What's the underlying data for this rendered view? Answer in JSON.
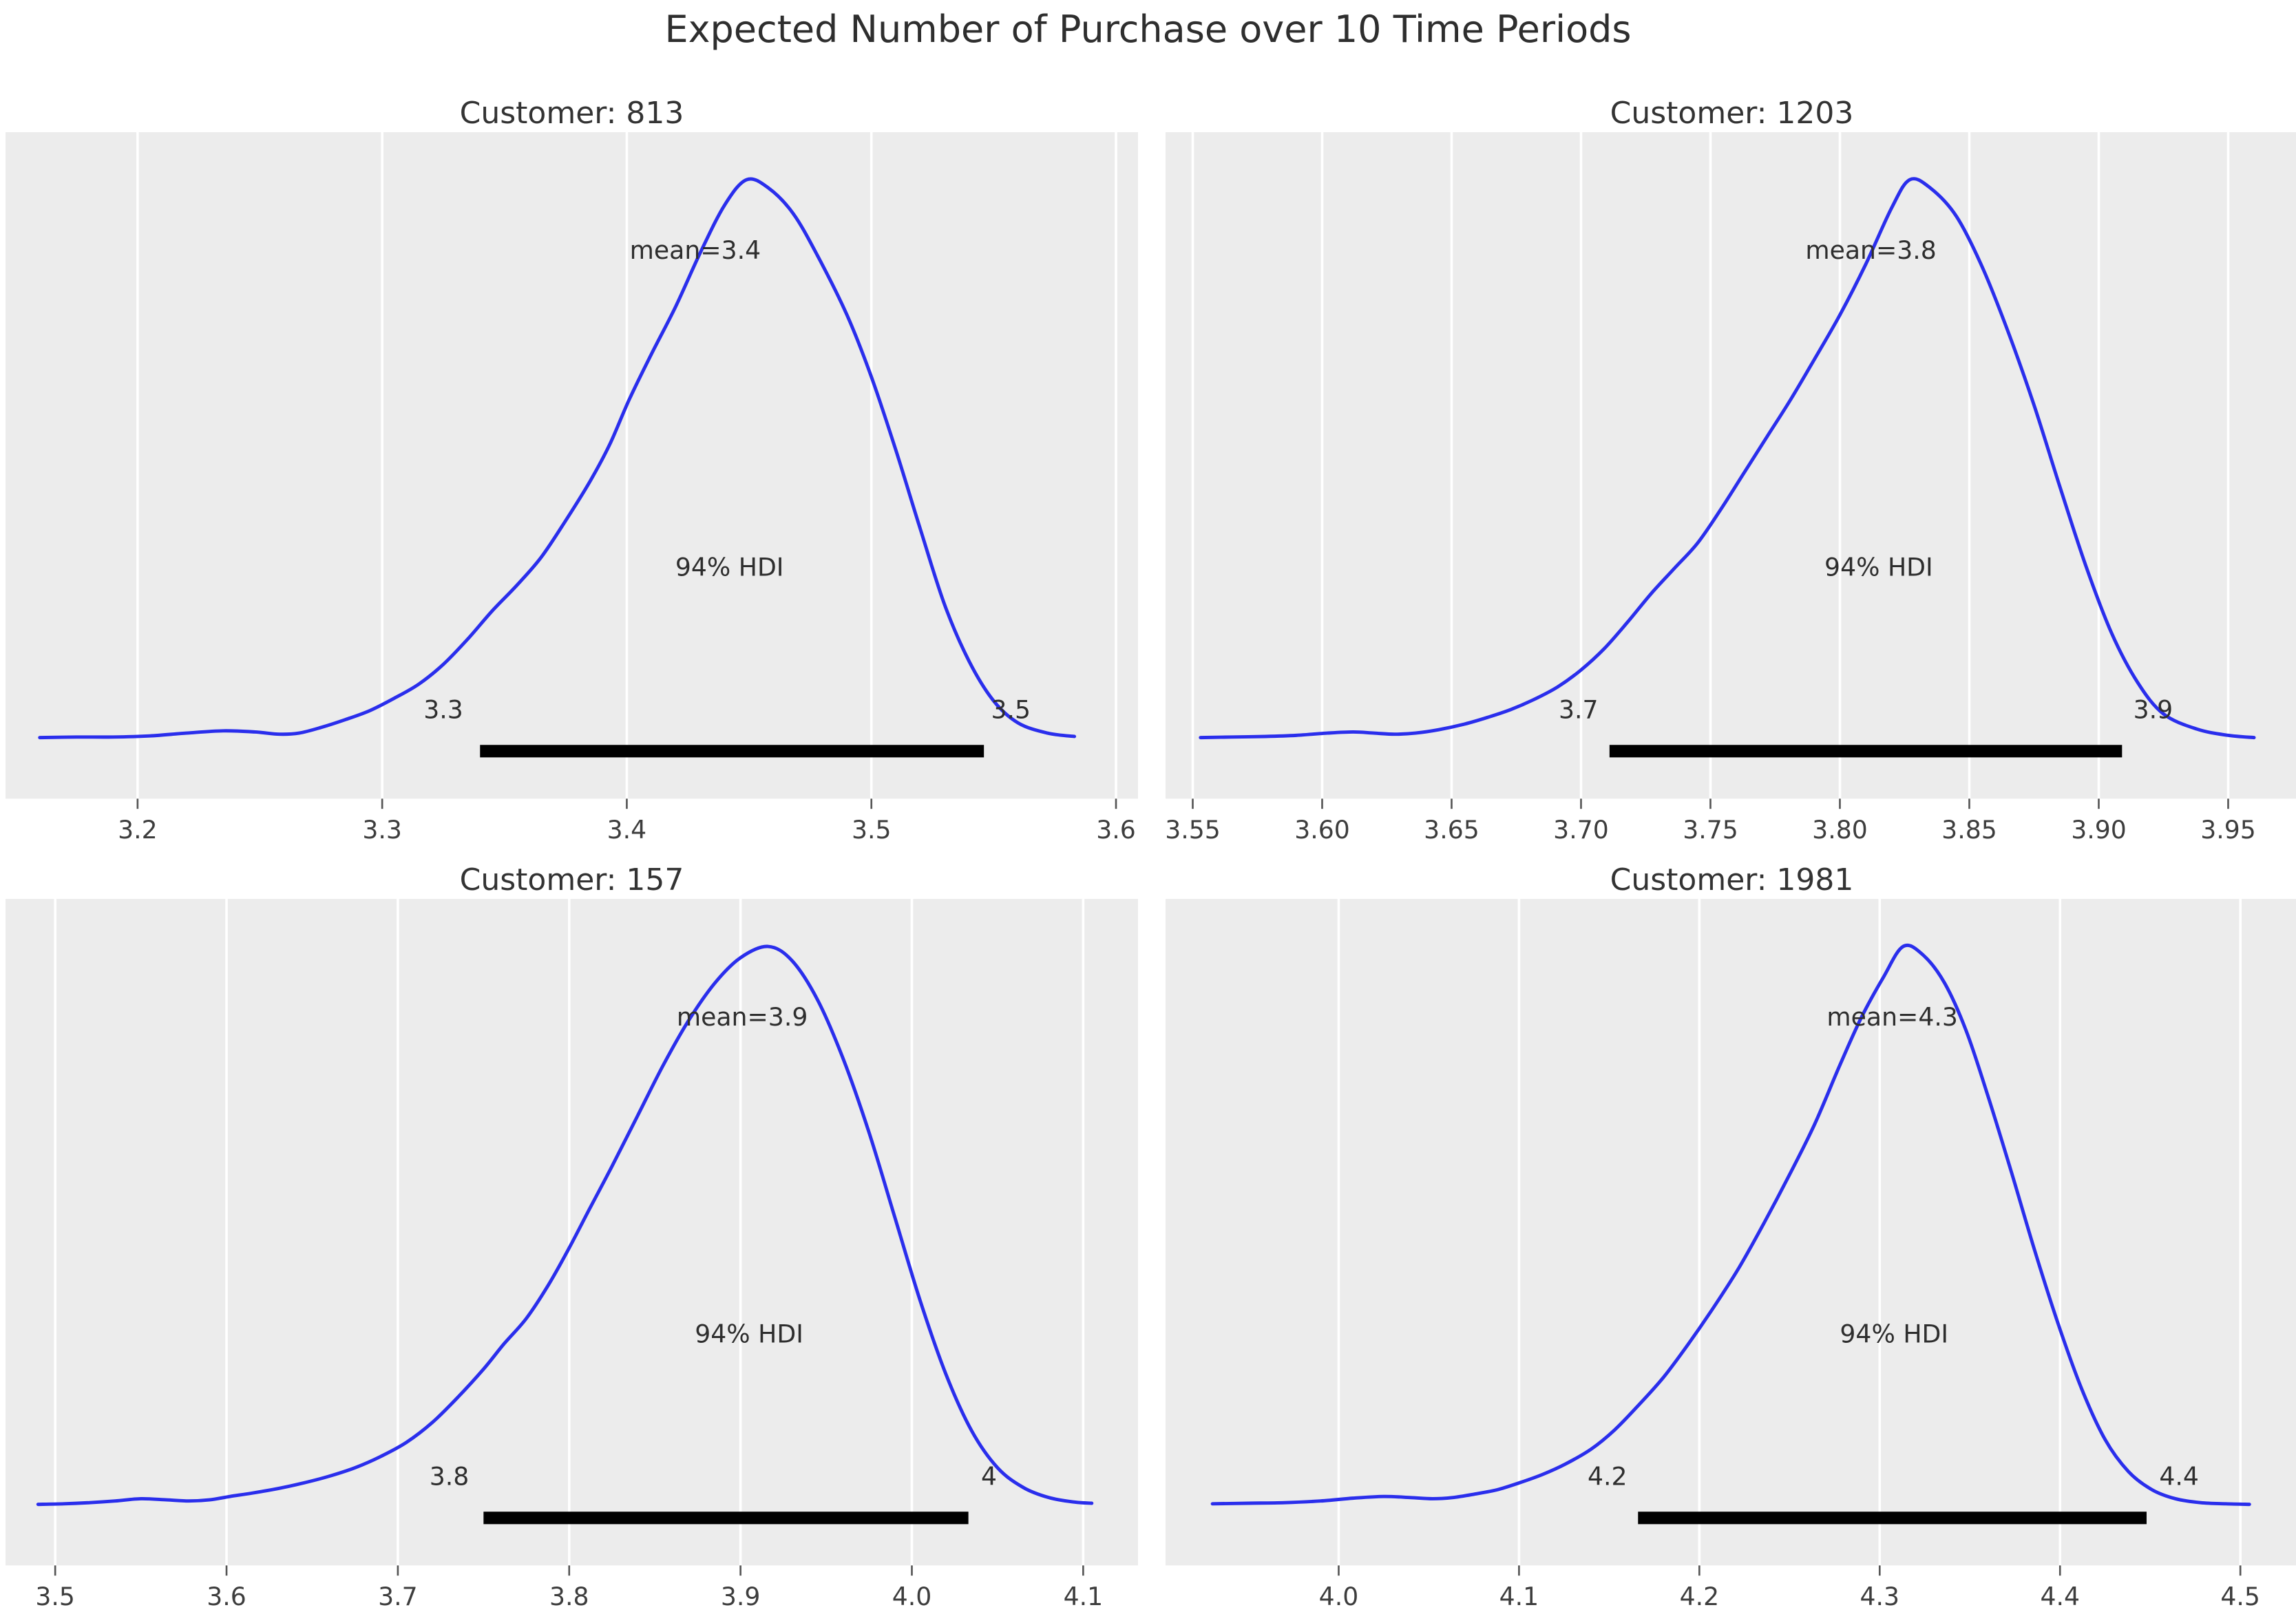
{
  "figure": {
    "title": "Expected Number of Purchase over 10 Time Periods"
  },
  "colors": {
    "curve": "#2a2eec",
    "panel_bg": "#ececec",
    "gridline": "#ffffff",
    "hdi_line": "#000000",
    "tick": "#555555",
    "text": "#333333",
    "annotation_text": "#2e2e2e"
  },
  "chart_data": [
    {
      "type": "line",
      "kind": "kde-posterior",
      "title": "Customer: 813",
      "mean": 3.4,
      "mean_label": "mean=3.4",
      "hdi": {
        "prob_label": "94% HDI",
        "lower": 3.34,
        "upper": 3.546,
        "lower_label": "3.3",
        "upper_label": "3.5"
      },
      "xlim": [
        3.146,
        3.609
      ],
      "xticks": [
        3.2,
        3.3,
        3.4,
        3.5,
        3.6
      ],
      "xtick_labels": [
        "3.2",
        "3.3",
        "3.4",
        "3.5",
        "3.6"
      ],
      "annotations": {
        "mean_x": 3.428,
        "hdi_text_x": 3.442,
        "bound_label_x": [
          3.325,
          3.557
        ]
      },
      "curve": {
        "x": [
          3.16,
          3.175,
          3.19,
          3.205,
          3.22,
          3.235,
          3.248,
          3.258,
          3.266,
          3.275,
          3.285,
          3.295,
          3.305,
          3.315,
          3.325,
          3.335,
          3.345,
          3.355,
          3.365,
          3.375,
          3.385,
          3.393,
          3.401,
          3.41,
          3.42,
          3.43,
          3.44,
          3.449,
          3.458,
          3.468,
          3.478,
          3.49,
          3.5,
          3.51,
          3.52,
          3.53,
          3.54,
          3.55,
          3.56,
          3.572,
          3.583
        ],
        "density": [
          0.01,
          0.011,
          0.011,
          0.013,
          0.018,
          0.022,
          0.02,
          0.016,
          0.018,
          0.028,
          0.042,
          0.058,
          0.08,
          0.105,
          0.14,
          0.185,
          0.235,
          0.28,
          0.33,
          0.395,
          0.465,
          0.53,
          0.61,
          0.69,
          0.775,
          0.87,
          0.955,
          1.0,
          0.985,
          0.94,
          0.865,
          0.76,
          0.65,
          0.52,
          0.38,
          0.245,
          0.145,
          0.075,
          0.036,
          0.018,
          0.012
        ]
      }
    },
    {
      "type": "line",
      "kind": "kde-posterior",
      "title": "Customer: 1203",
      "mean": 3.8,
      "mean_label": "mean=3.8",
      "hdi": {
        "prob_label": "94% HDI",
        "lower": 3.711,
        "upper": 3.909,
        "lower_label": "3.7",
        "upper_label": "3.9"
      },
      "xlim": [
        3.5395,
        3.977
      ],
      "xticks": [
        3.55,
        3.6,
        3.65,
        3.7,
        3.75,
        3.8,
        3.85,
        3.9,
        3.95
      ],
      "xtick_labels": [
        "3.55",
        "3.60",
        "3.65",
        "3.70",
        "3.75",
        "3.80",
        "3.85",
        "3.90",
        "3.95"
      ],
      "annotations": {
        "mean_x": 3.812,
        "hdi_text_x": 3.815,
        "bound_label_x": [
          3.699,
          3.921
        ]
      },
      "curve": {
        "x": [
          3.553,
          3.565,
          3.578,
          3.59,
          3.602,
          3.612,
          3.62,
          3.628,
          3.636,
          3.645,
          3.655,
          3.664,
          3.673,
          3.682,
          3.691,
          3.7,
          3.709,
          3.718,
          3.727,
          3.736,
          3.745,
          3.754,
          3.763,
          3.772,
          3.781,
          3.79,
          3.8,
          3.81,
          3.82,
          3.827,
          3.835,
          3.845,
          3.855,
          3.865,
          3.875,
          3.885,
          3.895,
          3.905,
          3.915,
          3.925,
          3.938,
          3.95,
          3.96
        ],
        "density": [
          0.01,
          0.011,
          0.012,
          0.014,
          0.018,
          0.02,
          0.018,
          0.016,
          0.018,
          0.024,
          0.034,
          0.046,
          0.06,
          0.078,
          0.1,
          0.13,
          0.168,
          0.215,
          0.265,
          0.31,
          0.355,
          0.415,
          0.48,
          0.545,
          0.61,
          0.68,
          0.76,
          0.85,
          0.95,
          1.0,
          0.985,
          0.935,
          0.845,
          0.73,
          0.6,
          0.455,
          0.315,
          0.195,
          0.108,
          0.052,
          0.025,
          0.014,
          0.01
        ]
      }
    },
    {
      "type": "line",
      "kind": "kde-posterior",
      "title": "Customer: 157",
      "mean": 3.9,
      "mean_label": "mean=3.9",
      "hdi": {
        "prob_label": "94% HDI",
        "lower": 3.75,
        "upper": 4.033,
        "lower_label": "3.8",
        "upper_label": "4"
      },
      "xlim": [
        3.471,
        4.132
      ],
      "xticks": [
        3.5,
        3.6,
        3.7,
        3.8,
        3.9,
        4.0,
        4.1
      ],
      "xtick_labels": [
        "3.5",
        "3.6",
        "3.7",
        "3.8",
        "3.9",
        "4.0",
        "4.1"
      ],
      "annotations": {
        "mean_x": 3.901,
        "hdi_text_x": 3.905,
        "bound_label_x": [
          3.73,
          4.045
        ]
      },
      "curve": {
        "x": [
          3.49,
          3.505,
          3.52,
          3.535,
          3.55,
          3.565,
          3.578,
          3.59,
          3.602,
          3.615,
          3.63,
          3.645,
          3.66,
          3.675,
          3.69,
          3.705,
          3.72,
          3.735,
          3.75,
          3.762,
          3.775,
          3.788,
          3.8,
          3.812,
          3.825,
          3.84,
          3.855,
          3.87,
          3.885,
          3.9,
          3.916,
          3.93,
          3.945,
          3.96,
          3.975,
          3.99,
          4.005,
          4.02,
          4.035,
          4.05,
          4.065,
          4.08,
          4.095,
          4.105
        ],
        "density": [
          0.01,
          0.011,
          0.013,
          0.016,
          0.02,
          0.018,
          0.016,
          0.018,
          0.024,
          0.03,
          0.038,
          0.048,
          0.06,
          0.075,
          0.095,
          0.12,
          0.155,
          0.2,
          0.25,
          0.295,
          0.34,
          0.4,
          0.465,
          0.535,
          0.61,
          0.7,
          0.79,
          0.87,
          0.935,
          0.98,
          1.0,
          0.975,
          0.905,
          0.8,
          0.67,
          0.52,
          0.37,
          0.24,
          0.14,
          0.075,
          0.04,
          0.022,
          0.014,
          0.012
        ]
      }
    },
    {
      "type": "line",
      "kind": "kde-posterior",
      "title": "Customer: 1981",
      "mean": 4.3,
      "mean_label": "mean=4.3",
      "hdi": {
        "prob_label": "94% HDI",
        "lower": 4.166,
        "upper": 4.448,
        "lower_label": "4.2",
        "upper_label": "4.4"
      },
      "xlim": [
        3.904,
        4.532
      ],
      "xticks": [
        4.0,
        4.1,
        4.2,
        4.3,
        4.4,
        4.5
      ],
      "xtick_labels": [
        "4.0",
        "4.1",
        "4.2",
        "4.3",
        "4.4",
        "4.5"
      ],
      "annotations": {
        "mean_x": 4.307,
        "hdi_text_x": 4.308,
        "bound_label_x": [
          4.149,
          4.466
        ]
      },
      "curve": {
        "x": [
          3.93,
          3.95,
          3.97,
          3.99,
          4.008,
          4.025,
          4.04,
          4.052,
          4.063,
          4.075,
          4.088,
          4.1,
          4.113,
          4.126,
          4.14,
          4.153,
          4.166,
          4.18,
          4.194,
          4.208,
          4.222,
          4.236,
          4.25,
          4.264,
          4.278,
          4.29,
          4.302,
          4.313,
          4.324,
          4.336,
          4.348,
          4.36,
          4.373,
          4.386,
          4.399,
          4.412,
          4.425,
          4.438,
          4.451,
          4.464,
          4.478,
          4.492,
          4.505
        ],
        "density": [
          0.011,
          0.012,
          0.013,
          0.016,
          0.021,
          0.024,
          0.022,
          0.02,
          0.022,
          0.028,
          0.036,
          0.048,
          0.063,
          0.082,
          0.108,
          0.142,
          0.185,
          0.235,
          0.295,
          0.36,
          0.43,
          0.51,
          0.595,
          0.685,
          0.79,
          0.875,
          0.945,
          1.0,
          0.985,
          0.935,
          0.85,
          0.735,
          0.6,
          0.46,
          0.33,
          0.215,
          0.125,
          0.068,
          0.036,
          0.02,
          0.013,
          0.011,
          0.01
        ]
      }
    }
  ]
}
